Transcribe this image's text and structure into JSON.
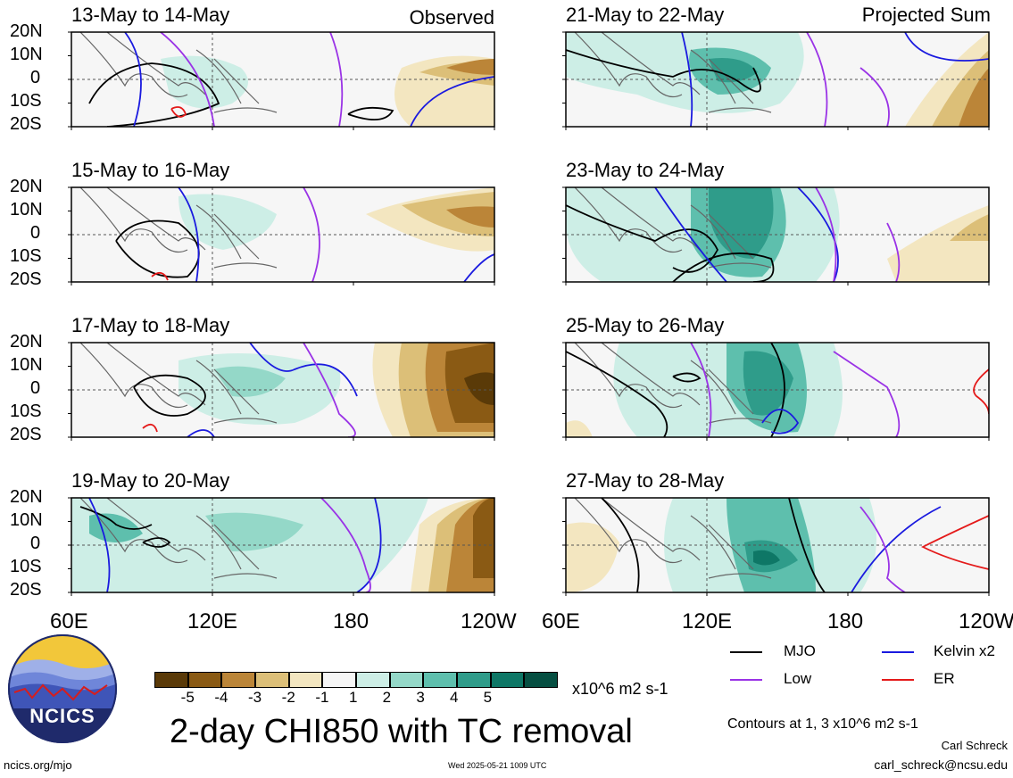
{
  "panels": [
    {
      "id": "p1",
      "title": "13-May to 14-May",
      "tag": "Observed"
    },
    {
      "id": "p2",
      "title": "21-May to 22-May",
      "tag": "Projected Sum"
    },
    {
      "id": "p3",
      "title": "15-May to 16-May",
      "tag": ""
    },
    {
      "id": "p4",
      "title": "23-May to 24-May",
      "tag": ""
    },
    {
      "id": "p5",
      "title": "17-May to 18-May",
      "tag": ""
    },
    {
      "id": "p6",
      "title": "25-May to 26-May",
      "tag": ""
    },
    {
      "id": "p7",
      "title": "19-May to 20-May",
      "tag": ""
    },
    {
      "id": "p8",
      "title": "27-May to 28-May",
      "tag": ""
    }
  ],
  "lat_labels": [
    "20N",
    "10N",
    "0",
    "10S",
    "20S"
  ],
  "lon_labels": [
    "60E",
    "120E",
    "180",
    "120W"
  ],
  "lon_labels_right": [
    "60E",
    "120E",
    "180",
    "120W"
  ],
  "colorbar": {
    "ticks": [
      "-5",
      "-4",
      "-3",
      "-2",
      "-1",
      "1",
      "2",
      "3",
      "4",
      "5"
    ],
    "colors": [
      "#5a3a08",
      "#8a5a14",
      "#bb8538",
      "#dcbf78",
      "#f3e6c0",
      "#f6f6f6",
      "#cdeee6",
      "#94d8c8",
      "#5ebfad",
      "#2f9c8a",
      "#0e7766",
      "#064f42"
    ],
    "units": "x10^6 m2 s-1"
  },
  "legend": {
    "mjo": "MJO",
    "kelvin": "Kelvin x2",
    "low": "Low",
    "er": "ER",
    "colors": {
      "mjo": "#000000",
      "kelvin": "#1a1adf",
      "low": "#9a33e6",
      "er": "#e41a1a"
    },
    "contours": "Contours at 1, 3 x10^6 m2 s-1"
  },
  "title": "2-day CHI850 with TC removal",
  "logo_text": "NCICS",
  "footer_left": "ncics.org/mjo",
  "footer_center": "Wed 2025-05-21 1009 UTC",
  "author": "Carl Schreck",
  "email": "carl_schreck@ncsu.edu"
}
